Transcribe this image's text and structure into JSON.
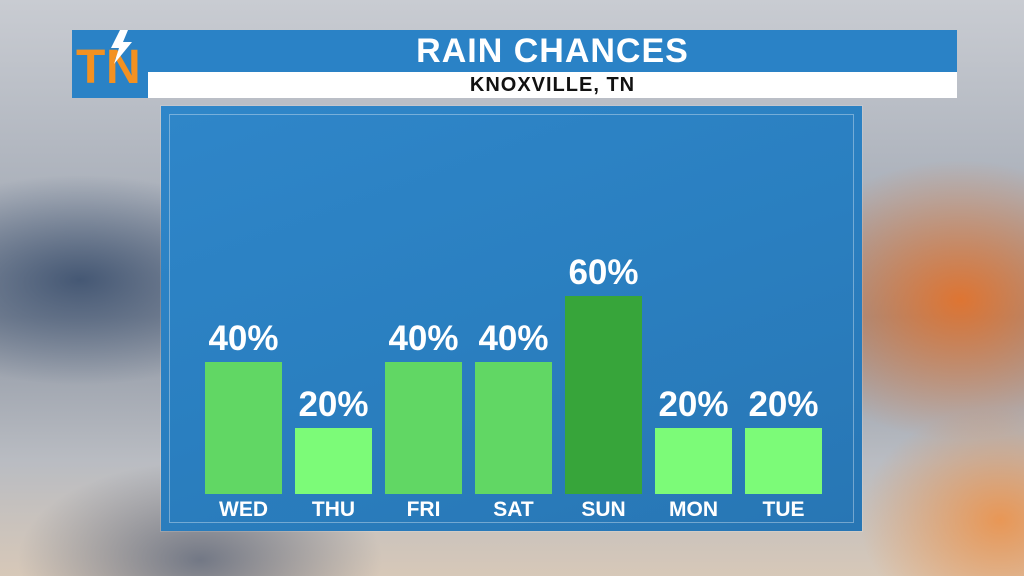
{
  "header": {
    "logo_text": "TN",
    "title": "RAIN CHANCES",
    "subtitle": "KNOXVILLE, TN"
  },
  "colors": {
    "accent_blue": "#2a82c6",
    "logo_orange": "#f39121",
    "bar_light": "#7cfb78",
    "bar_mid": "#61d764",
    "bar_dark": "#37a53a"
  },
  "chart_data": {
    "type": "bar",
    "title": "RAIN CHANCES",
    "subtitle": "KNOXVILLE, TN",
    "categories": [
      "WED",
      "THU",
      "FRI",
      "SAT",
      "SUN",
      "MON",
      "TUE"
    ],
    "values": [
      40,
      20,
      40,
      40,
      60,
      20,
      20
    ],
    "value_labels": [
      "40%",
      "20%",
      "40%",
      "40%",
      "60%",
      "20%",
      "20%"
    ],
    "bar_colors": [
      "#61d764",
      "#7cfb78",
      "#61d764",
      "#61d764",
      "#37a53a",
      "#7cfb78",
      "#7cfb78"
    ],
    "ylim": [
      0,
      100
    ],
    "unit": "%",
    "grid": false,
    "legend": "none"
  }
}
